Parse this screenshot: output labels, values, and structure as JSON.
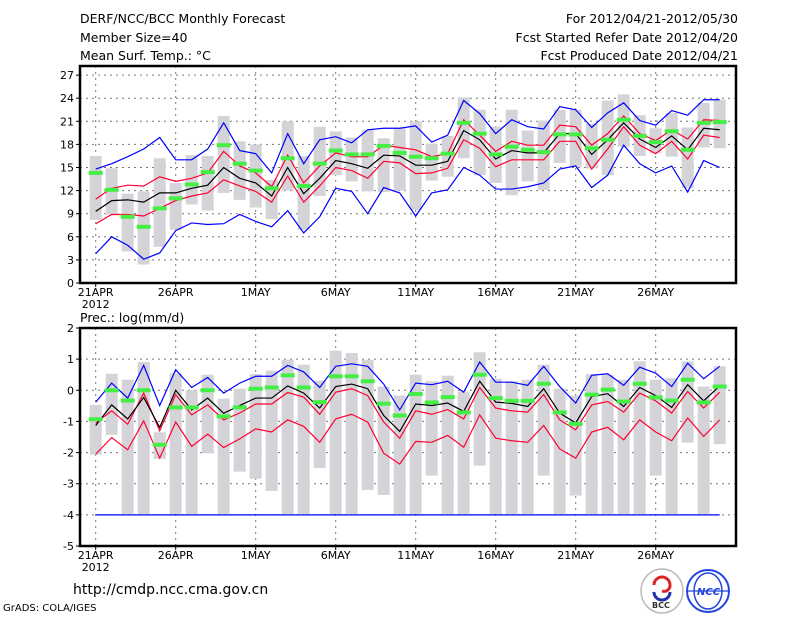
{
  "header": {
    "title": "DERF/NCC/BCC Monthly Forecast",
    "member_size": "Member Size=40",
    "period": "For 2012/04/21-2012/05/30",
    "started": "Fcst Started Refer Date 2012/04/20",
    "produced": "Fcst Produced Date 2012/04/21"
  },
  "footer": {
    "url": "http://cmdp.ncc.cma.gov.cn",
    "grads": "GrADS: COLA/IGES",
    "logo_bcc": "BCC",
    "logo_ncc": "NCC"
  },
  "colors": {
    "blue": "#0000ff",
    "red": "#ff0033",
    "mean": "#000000",
    "obs": "#44ee44",
    "box": "#d4d4d8"
  },
  "chart_data": [
    {
      "type": "line",
      "title": "Mean Surf. Temp.: °C",
      "ylim": [
        0,
        27
      ],
      "yticks": [
        0,
        3,
        6,
        9,
        12,
        15,
        18,
        21,
        24,
        27
      ],
      "xtick_labels": [
        "21APR",
        "26APR",
        "1MAY",
        "6MAY",
        "11MAY",
        "16MAY",
        "21MAY",
        "26MAY"
      ],
      "xtick_days": [
        0,
        5,
        10,
        15,
        20,
        25,
        30,
        35
      ],
      "year_label": "2012",
      "grid": true,
      "series": [
        {
          "name": "max",
          "color": "blue",
          "values": [
            14.8,
            15.5,
            16.4,
            17.4,
            18.9,
            16.0,
            16.0,
            17.4,
            20.8,
            17.2,
            16.8,
            14.3,
            19.4,
            15.5,
            18.6,
            19.0,
            18.2,
            19.9,
            20.1,
            20.1,
            20.4,
            18.3,
            19.2,
            23.7,
            22.0,
            19.4,
            21.2,
            20.3,
            20.0,
            22.9,
            22.5,
            20.2,
            22.1,
            23.4,
            21.1,
            20.5,
            22.4,
            21.8,
            23.8,
            23.8
          ]
        },
        {
          "name": "upper",
          "color": "red",
          "values": [
            10.9,
            12.3,
            12.7,
            12.6,
            13.8,
            13.2,
            13.6,
            14.3,
            17.1,
            15.2,
            14.3,
            12.5,
            16.6,
            13.0,
            15.2,
            16.9,
            16.4,
            16.4,
            17.9,
            17.6,
            17.3,
            16.4,
            16.8,
            21.2,
            19.2,
            17.1,
            18.4,
            17.9,
            17.9,
            20.5,
            20.3,
            17.9,
            19.4,
            21.7,
            19.4,
            18.5,
            19.9,
            18.7,
            21.2,
            21.1
          ]
        },
        {
          "name": "ensemble mean",
          "color": "mean",
          "values": [
            9.3,
            10.7,
            10.8,
            10.5,
            11.7,
            11.7,
            12.3,
            12.7,
            15.0,
            13.6,
            13.0,
            11.3,
            15.0,
            11.6,
            13.6,
            15.9,
            15.5,
            14.9,
            16.6,
            16.5,
            15.3,
            15.3,
            15.8,
            19.8,
            18.6,
            16.1,
            17.2,
            16.9,
            16.9,
            19.4,
            19.4,
            16.7,
            18.6,
            20.8,
            18.7,
            17.6,
            19.1,
            17.3,
            20.1,
            19.9
          ]
        },
        {
          "name": "lower",
          "color": "red",
          "values": [
            7.7,
            8.9,
            8.9,
            8.7,
            9.7,
            10.7,
            11.3,
            11.7,
            13.4,
            12.6,
            11.9,
            10.5,
            13.9,
            10.5,
            12.6,
            15.0,
            14.6,
            13.6,
            15.8,
            15.6,
            14.2,
            14.3,
            14.9,
            18.6,
            17.5,
            15.1,
            16.0,
            16.0,
            16.0,
            18.4,
            18.4,
            14.8,
            17.4,
            20.3,
            17.9,
            16.8,
            18.4,
            16.1,
            19.2,
            18.9
          ]
        },
        {
          "name": "min",
          "color": "blue",
          "values": [
            3.8,
            6.0,
            4.9,
            3.1,
            3.9,
            6.8,
            7.8,
            7.6,
            7.7,
            8.9,
            8.0,
            7.3,
            9.4,
            6.5,
            8.6,
            12.3,
            11.9,
            9.0,
            12.4,
            11.7,
            8.7,
            11.7,
            12.1,
            15.0,
            14.0,
            12.2,
            12.2,
            12.5,
            13.0,
            14.8,
            15.2,
            12.4,
            14.0,
            17.9,
            15.5,
            14.3,
            15.2,
            11.8,
            15.9,
            15.0
          ]
        }
      ],
      "markers": {
        "name": "obs",
        "color": "obs",
        "values": [
          14.3,
          12.1,
          8.6,
          7.3,
          9.7,
          11.0,
          12.8,
          14.4,
          17.9,
          15.5,
          14.6,
          12.3,
          16.2,
          12.6,
          15.5,
          17.2,
          16.7,
          16.7,
          17.8,
          16.9,
          16.4,
          16.2,
          16.8,
          20.8,
          19.4,
          16.7,
          17.7,
          17.3,
          17.0,
          19.3,
          19.3,
          17.5,
          18.6,
          21.2,
          19.1,
          18.3,
          19.7,
          17.3,
          20.8,
          20.9
        ]
      },
      "boxes": {
        "high": [
          16.5,
          14.9,
          11.6,
          11.9,
          16.2,
          13.0,
          16.6,
          16.5,
          21.7,
          18.4,
          18.0,
          13.4,
          21.0,
          16.5,
          20.3,
          19.7,
          18.9,
          19.9,
          18.8,
          20.1,
          21.0,
          18.1,
          19.1,
          24.1,
          22.5,
          20.3,
          22.5,
          19.8,
          21.1,
          22.5,
          22.5,
          20.7,
          23.7,
          24.5,
          21.8,
          20.1,
          22.1,
          20.2,
          23.4,
          23.8
        ],
        "low": [
          8.2,
          8.9,
          4.1,
          2.4,
          4.7,
          6.9,
          10.2,
          9.4,
          11.7,
          10.8,
          9.8,
          8.3,
          12.0,
          6.9,
          11.3,
          14.0,
          13.2,
          11.9,
          11.8,
          12.0,
          9.5,
          13.3,
          13.8,
          16.2,
          14.0,
          13.0,
          11.4,
          13.2,
          12.1,
          15.6,
          15.1,
          14.9,
          14.0,
          17.7,
          16.5,
          16.9,
          16.4,
          12.3,
          17.6,
          17.5
        ]
      }
    },
    {
      "type": "line",
      "title": "Prec.: log(mm/d)",
      "ylim": [
        -5,
        2
      ],
      "yticks": [
        -5,
        -4,
        -3,
        -2,
        -1,
        0,
        1,
        2
      ],
      "xtick_labels": [
        "21APR",
        "26APR",
        "1MAY",
        "6MAY",
        "11MAY",
        "16MAY",
        "21MAY",
        "26MAY"
      ],
      "xtick_days": [
        0,
        5,
        10,
        15,
        20,
        25,
        30,
        35
      ],
      "year_label": "2012",
      "grid": true,
      "series": [
        {
          "name": "max",
          "color": "blue",
          "values": [
            -0.38,
            0.23,
            -0.25,
            0.8,
            -0.49,
            0.66,
            0.09,
            0.41,
            -0.09,
            0.23,
            0.45,
            0.45,
            0.8,
            0.59,
            0.09,
            0.77,
            0.85,
            0.77,
            0.2,
            -0.63,
            0.23,
            0.18,
            0.29,
            -0.06,
            0.91,
            0.26,
            0.26,
            0.16,
            0.77,
            0.12,
            -0.41,
            0.48,
            0.53,
            0.16,
            0.74,
            0.55,
            0.12,
            0.87,
            0.37,
            0.77
          ]
        },
        {
          "name": "upper",
          "color": "red",
          "values": [
            -1.05,
            -0.66,
            -1.09,
            -0.09,
            -1.3,
            -0.14,
            -0.79,
            -0.47,
            -0.95,
            -0.73,
            -0.44,
            -0.44,
            -0.07,
            -0.22,
            -0.77,
            -0.06,
            0.05,
            -0.17,
            -1.02,
            -1.54,
            -0.66,
            -0.77,
            -0.62,
            -0.92,
            0.09,
            -0.57,
            -0.66,
            -0.7,
            -0.14,
            -0.95,
            -1.27,
            -0.47,
            -0.36,
            -0.7,
            -0.09,
            -0.34,
            -0.73,
            -0.04,
            -0.57,
            -0.06
          ]
        },
        {
          "name": "ensemble mean",
          "color": "mean",
          "values": [
            -1.13,
            -0.47,
            -0.92,
            -0.23,
            -1.19,
            0.0,
            -0.63,
            -0.25,
            -0.74,
            -0.49,
            -0.25,
            -0.25,
            0.14,
            -0.09,
            -0.57,
            0.12,
            0.2,
            0.05,
            -0.81,
            -1.32,
            -0.44,
            -0.49,
            -0.41,
            -0.68,
            0.29,
            -0.38,
            -0.42,
            -0.52,
            0.05,
            -0.73,
            -1.05,
            -0.2,
            -0.11,
            -0.52,
            0.09,
            -0.17,
            -0.55,
            0.18,
            -0.34,
            0.14
          ]
        },
        {
          "name": "lower",
          "color": "red",
          "values": [
            -2.05,
            -1.52,
            -1.91,
            -0.98,
            -2.18,
            -1.02,
            -1.8,
            -1.41,
            -1.84,
            -1.56,
            -1.24,
            -1.34,
            -0.95,
            -1.16,
            -1.67,
            -0.92,
            -0.77,
            -1.02,
            -2.02,
            -2.37,
            -1.64,
            -1.67,
            -1.45,
            -1.83,
            -0.79,
            -1.54,
            -1.62,
            -1.67,
            -1.13,
            -1.88,
            -2.18,
            -1.34,
            -1.19,
            -1.59,
            -0.95,
            -1.34,
            -1.62,
            -0.89,
            -1.48,
            -0.95
          ]
        },
        {
          "name": "min",
          "color": "blue",
          "values": [
            -4,
            -4,
            -4,
            -4,
            -4,
            -4,
            -4,
            -4,
            -4,
            -4,
            -4,
            -4,
            -4,
            -4,
            -4,
            -4,
            -4,
            -4,
            -4,
            -4,
            -4,
            -4,
            -4,
            -4,
            -4,
            -4,
            -4,
            -4,
            -4,
            -4,
            -4,
            -4,
            -4,
            -4,
            -4,
            -4,
            -4,
            -4,
            -4,
            -4
          ]
        }
      ],
      "markers": {
        "name": "obs",
        "color": "obs",
        "values": [
          -0.93,
          0.0,
          -0.33,
          0.0,
          -1.75,
          -0.55,
          -0.55,
          0.0,
          -0.84,
          -0.55,
          0.05,
          0.09,
          0.48,
          0.09,
          -0.38,
          0.45,
          0.45,
          0.29,
          -0.43,
          -0.81,
          -0.12,
          -0.39,
          -0.22,
          -0.71,
          0.5,
          -0.25,
          -0.34,
          -0.34,
          0.21,
          -0.71,
          -1.08,
          -0.14,
          0.02,
          -0.36,
          0.21,
          -0.23,
          -0.33,
          0.34,
          -0.39,
          0.12
        ]
      },
      "boxes": {
        "high": [
          -0.47,
          0.53,
          0.34,
          0.91,
          -1.35,
          0.55,
          0.0,
          0.5,
          -0.27,
          0.05,
          0.52,
          0.63,
          0.98,
          0.82,
          0.31,
          1.27,
          1.2,
          0.98,
          0.12,
          -0.17,
          0.5,
          0.29,
          0.47,
          -0.04,
          1.22,
          0.37,
          0.29,
          0.34,
          0.82,
          0.05,
          -0.17,
          0.52,
          0.5,
          0.34,
          0.93,
          0.34,
          0.39,
          0.93,
          0.12,
          0.77
        ],
        "low": [
          -2.07,
          -1.43,
          -3.97,
          -3.97,
          -2.2,
          -3.97,
          -3.97,
          -2.02,
          -3.97,
          -2.61,
          -2.84,
          -3.23,
          -3.97,
          -3.97,
          -2.5,
          -3.97,
          -3.97,
          -3.2,
          -3.36,
          -3.97,
          -3.97,
          -2.74,
          -3.97,
          -3.97,
          -2.42,
          -3.97,
          -3.97,
          -3.97,
          -2.74,
          -3.97,
          -3.38,
          -3.97,
          -3.97,
          -3.97,
          -3.97,
          -2.74,
          -3.97,
          -1.68,
          -3.97,
          -1.73
        ]
      }
    }
  ]
}
